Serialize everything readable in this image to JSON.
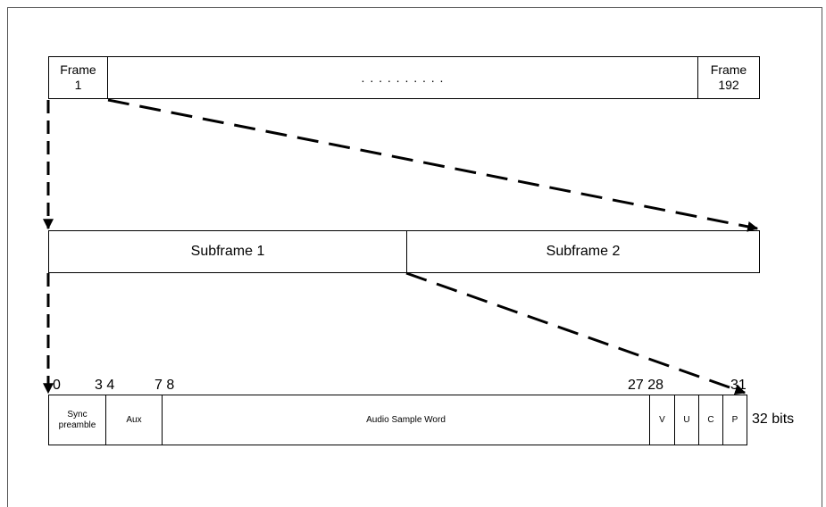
{
  "top_row": {
    "frame_first": "Frame\n1",
    "dots": ". . . . . . . . . .",
    "frame_last": "Frame\n192"
  },
  "middle_row": {
    "subframe1": "Subframe 1",
    "subframe2": "Subframe 2"
  },
  "bit_numbers": {
    "b0": "0",
    "b3_4": "3 4",
    "b7_8": "7 8",
    "b27_28": "27 28",
    "b31": "31"
  },
  "bottom_row": {
    "sync": "Sync\npreamble",
    "aux": "Aux",
    "audio": "Audio Sample Word",
    "v": "V",
    "u": "U",
    "c": "C",
    "p": "P",
    "total": "32 bits"
  }
}
